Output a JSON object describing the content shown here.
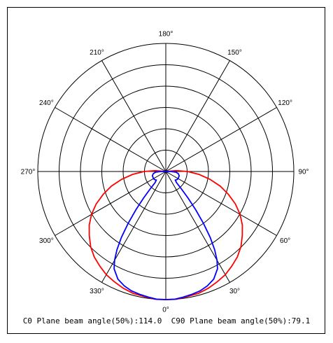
{
  "chart_data": {
    "type": "polar",
    "angle_labels": [
      "0°",
      "30°",
      "60°",
      "90°",
      "120°",
      "150°",
      "180°",
      "210°",
      "240°",
      "270°",
      "300°",
      "330°"
    ],
    "angles_deg": [
      0,
      30,
      60,
      90,
      120,
      150,
      180,
      210,
      240,
      270,
      300,
      330
    ],
    "rings": 6,
    "r_max": 1.0,
    "series": [
      {
        "color": "#ff0000",
        "curve": [
          [
            0,
            1.0
          ],
          [
            5,
            1.0
          ],
          [
            10,
            0.99
          ],
          [
            15,
            0.985
          ],
          [
            20,
            0.97
          ],
          [
            25,
            0.95
          ],
          [
            30,
            0.93
          ],
          [
            35,
            0.9
          ],
          [
            40,
            0.87
          ],
          [
            45,
            0.83
          ],
          [
            50,
            0.78
          ],
          [
            55,
            0.73
          ],
          [
            60,
            0.67
          ],
          [
            65,
            0.6
          ],
          [
            70,
            0.52
          ],
          [
            75,
            0.44
          ],
          [
            80,
            0.35
          ],
          [
            85,
            0.26
          ],
          [
            90,
            0.17
          ],
          [
            95,
            0.08
          ],
          [
            100,
            0.0
          ]
        ]
      },
      {
        "color": "#0000ff",
        "curve": [
          [
            0,
            1.0
          ],
          [
            4,
            1.0
          ],
          [
            8,
            0.99
          ],
          [
            12,
            0.98
          ],
          [
            16,
            0.97
          ],
          [
            20,
            0.95
          ],
          [
            24,
            0.92
          ],
          [
            28,
            0.86
          ],
          [
            30,
            0.8
          ],
          [
            32,
            0.72
          ],
          [
            34,
            0.62
          ],
          [
            36,
            0.5
          ],
          [
            38,
            0.38
          ],
          [
            40,
            0.27
          ],
          [
            42,
            0.18
          ],
          [
            44,
            0.12
          ],
          [
            48,
            0.1
          ],
          [
            56,
            0.11
          ],
          [
            64,
            0.11
          ],
          [
            72,
            0.11
          ],
          [
            80,
            0.1
          ],
          [
            86,
            0.08
          ],
          [
            90,
            0.04
          ],
          [
            95,
            0.0
          ]
        ]
      }
    ]
  },
  "footer": {
    "c0_text": "C0 Plane beam angle(50%):114.0",
    "c90_text": "C90 Plane beam angle(50%):79.1"
  }
}
